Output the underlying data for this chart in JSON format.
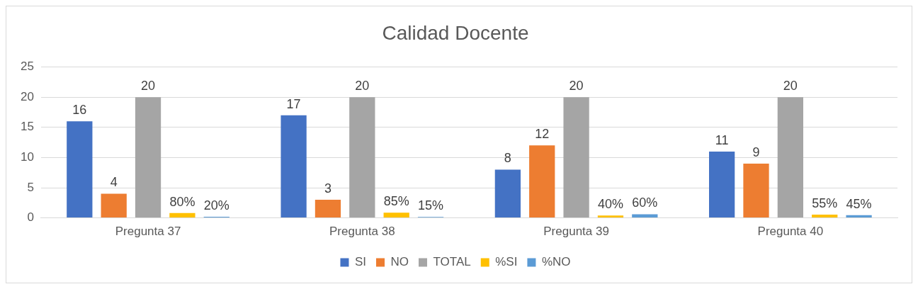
{
  "chart_data": {
    "type": "bar",
    "title": "Calidad Docente",
    "categories": [
      "Pregunta 37",
      "Pregunta 38",
      "Pregunta 39",
      "Pregunta 40"
    ],
    "series": [
      {
        "name": "SI",
        "color": "#4472c4",
        "values": [
          16,
          17,
          8,
          11
        ],
        "value_labels": [
          "16",
          "17",
          "8",
          "11"
        ]
      },
      {
        "name": "NO",
        "color": "#ed7d31",
        "values": [
          4,
          3,
          12,
          9
        ],
        "value_labels": [
          "4",
          "3",
          "12",
          "9"
        ]
      },
      {
        "name": "TOTAL",
        "color": "#a5a5a5",
        "values": [
          20,
          20,
          20,
          20
        ],
        "value_labels": [
          "20",
          "20",
          "20",
          "20"
        ]
      },
      {
        "name": "%SI",
        "color": "#ffc000",
        "values": [
          0.8,
          0.85,
          0.4,
          0.55
        ],
        "value_labels": [
          "80%",
          "85%",
          "40%",
          "55%"
        ]
      },
      {
        "name": "%NO",
        "color": "#5b9bd5",
        "values": [
          0.2,
          0.15,
          0.6,
          0.45
        ],
        "value_labels": [
          "20%",
          "15%",
          "60%",
          "45%"
        ]
      }
    ],
    "ylim": [
      0,
      25
    ],
    "yticks": [
      0,
      5,
      10,
      15,
      20,
      25
    ],
    "grid": "y",
    "legend": "bottom"
  }
}
